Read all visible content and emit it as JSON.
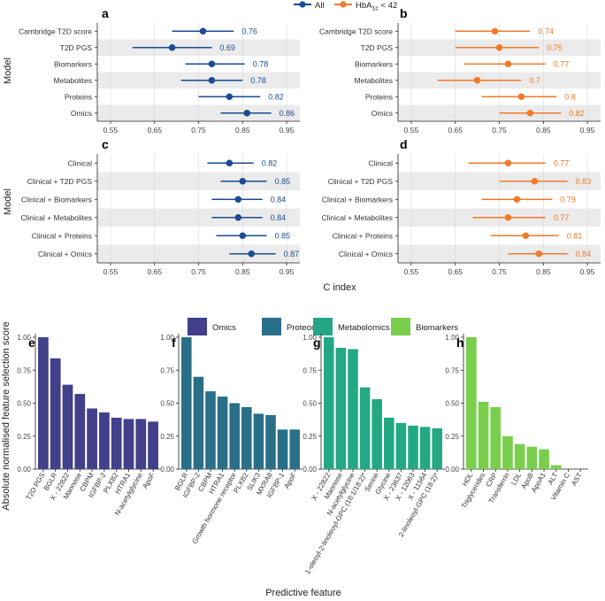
{
  "colors": {
    "all": "#1b4b91",
    "hba1c": "#f07a2a",
    "panel_band": "#ebebeb",
    "grid": "#d9d9d9",
    "omics": "#423f8b",
    "proteomics": "#2a6f88",
    "metabolomics": "#24a884",
    "biomarkers": "#79cf4c"
  },
  "legend_top": {
    "all_label": "All",
    "hba1c_label": "HbA1c < 42",
    "hba1c_main": "HbA",
    "hba1c_sub": "1c",
    "hba1c_rest": " < 42"
  },
  "top_axis": {
    "ylabel": "Model",
    "xlabel": "C index"
  },
  "legend_bottom": {
    "items": [
      {
        "label": "Omics"
      },
      {
        "label": "Proteomics"
      },
      {
        "label": "Metabolomics"
      },
      {
        "label": "Biomarkers"
      }
    ]
  },
  "bottom_axis": {
    "ylabel": "Absolute normalised feature selection score",
    "xlabel": "Predictive feature"
  },
  "chart_data": [
    {
      "panel": "a",
      "type": "forest",
      "series": "All",
      "xlim": [
        0.52,
        0.98
      ],
      "ticks": [
        "0.55",
        "0.65",
        "0.75",
        "0.85",
        "0.95"
      ],
      "tick_values": [
        0.55,
        0.65,
        0.75,
        0.85,
        0.95
      ],
      "rows": [
        {
          "label": "Cambridge T2D score",
          "value": 0.76,
          "lo": 0.69,
          "hi": 0.83,
          "text": "0.76"
        },
        {
          "label": "T2D PGS",
          "value": 0.69,
          "lo": 0.6,
          "hi": 0.78,
          "text": "0.69"
        },
        {
          "label": "Biomarkers",
          "value": 0.78,
          "lo": 0.72,
          "hi": 0.855,
          "text": "0.78"
        },
        {
          "label": "Metabolites",
          "value": 0.78,
          "lo": 0.71,
          "hi": 0.85,
          "text": "0.78"
        },
        {
          "label": "Proteins",
          "value": 0.82,
          "lo": 0.75,
          "hi": 0.89,
          "text": "0.82"
        },
        {
          "label": "Omics",
          "value": 0.86,
          "lo": 0.8,
          "hi": 0.915,
          "text": "0.86"
        }
      ]
    },
    {
      "panel": "b",
      "type": "forest",
      "series": "HbA1c < 42",
      "xlim": [
        0.52,
        0.98
      ],
      "ticks": [
        "0.55",
        "0.65",
        "0.75",
        "0.85",
        "0.95"
      ],
      "tick_values": [
        0.55,
        0.65,
        0.75,
        0.85,
        0.95
      ],
      "rows": [
        {
          "label": "Cambridge T2D score",
          "value": 0.74,
          "lo": 0.65,
          "hi": 0.82,
          "text": "0.74"
        },
        {
          "label": "T2D PGS",
          "value": 0.75,
          "lo": 0.65,
          "hi": 0.84,
          "text": "0.75"
        },
        {
          "label": "Biomarkers",
          "value": 0.77,
          "lo": 0.67,
          "hi": 0.855,
          "text": "0.77"
        },
        {
          "label": "Metabolites",
          "value": 0.7,
          "lo": 0.61,
          "hi": 0.8,
          "text": "0.7"
        },
        {
          "label": "Proteins",
          "value": 0.8,
          "lo": 0.71,
          "hi": 0.88,
          "text": "0.8"
        },
        {
          "label": "Omics",
          "value": 0.82,
          "lo": 0.75,
          "hi": 0.89,
          "text": "0.82"
        }
      ]
    },
    {
      "panel": "c",
      "type": "forest",
      "series": "All",
      "xlim": [
        0.52,
        0.98
      ],
      "ticks": [
        "0.55",
        "0.65",
        "0.75",
        "0.85",
        "0.95"
      ],
      "tick_values": [
        0.55,
        0.65,
        0.75,
        0.85,
        0.95
      ],
      "rows": [
        {
          "label": "Clinical",
          "value": 0.82,
          "lo": 0.77,
          "hi": 0.875,
          "text": "0.82"
        },
        {
          "label": "Clinical + T2D PGS",
          "value": 0.85,
          "lo": 0.8,
          "hi": 0.905,
          "text": "0.85"
        },
        {
          "label": "Clinical + Biomarkers",
          "value": 0.84,
          "lo": 0.78,
          "hi": 0.895,
          "text": "0.84"
        },
        {
          "label": "Clinical + Metabolites",
          "value": 0.84,
          "lo": 0.78,
          "hi": 0.895,
          "text": "0.84"
        },
        {
          "label": "Clinical + Proteins",
          "value": 0.85,
          "lo": 0.79,
          "hi": 0.905,
          "text": "0.85"
        },
        {
          "label": "Clinical + Omics",
          "value": 0.87,
          "lo": 0.82,
          "hi": 0.925,
          "text": "0.87"
        }
      ]
    },
    {
      "panel": "d",
      "type": "forest",
      "series": "HbA1c < 42",
      "xlim": [
        0.52,
        0.98
      ],
      "ticks": [
        "0.55",
        "0.65",
        "0.75",
        "0.85",
        "0.95"
      ],
      "tick_values": [
        0.55,
        0.65,
        0.75,
        0.85,
        0.95
      ],
      "rows": [
        {
          "label": "Clinical",
          "value": 0.77,
          "lo": 0.68,
          "hi": 0.855,
          "text": "0.77"
        },
        {
          "label": "Clinical + T2D PGS",
          "value": 0.83,
          "lo": 0.75,
          "hi": 0.905,
          "text": "0.83"
        },
        {
          "label": "Clinical + Biomarkers",
          "value": 0.79,
          "lo": 0.71,
          "hi": 0.87,
          "text": "0.79"
        },
        {
          "label": "Clinical + Metabolites",
          "value": 0.77,
          "lo": 0.69,
          "hi": 0.855,
          "text": "0.77"
        },
        {
          "label": "Clinical + Proteins",
          "value": 0.81,
          "lo": 0.73,
          "hi": 0.885,
          "text": "0.81"
        },
        {
          "label": "Clinical + Omics",
          "value": 0.84,
          "lo": 0.77,
          "hi": 0.905,
          "text": "0.84"
        }
      ]
    },
    {
      "panel": "e",
      "type": "bar",
      "group": "Omics",
      "ylim": [
        0,
        1
      ],
      "ticks": [
        "0.00",
        "0.25",
        "0.50",
        "0.75",
        "1.00"
      ],
      "tick_values": [
        0,
        0.25,
        0.5,
        0.75,
        1
      ],
      "categories": [
        "T2D PGS",
        "BGLR",
        "X - 22822",
        "Mannose",
        "CBPM",
        "IGFBP-2",
        "PLXB2",
        "HTRA1",
        "N-acetylglycine",
        "ApoF"
      ],
      "values": [
        1.0,
        0.84,
        0.64,
        0.57,
        0.46,
        0.43,
        0.39,
        0.38,
        0.38,
        0.36
      ]
    },
    {
      "panel": "f",
      "type": "bar",
      "group": "Proteomics",
      "ylim": [
        0,
        1
      ],
      "ticks": [
        "0.00",
        "0.25",
        "0.50",
        "0.75",
        "1.00"
      ],
      "tick_values": [
        0,
        0.25,
        0.5,
        0.75,
        1
      ],
      "categories": [
        "BGLR",
        "IGFBP-2",
        "CBPM",
        "HTRA1",
        "Growth hormone receptor",
        "PLXB2",
        "SLIK3",
        "MXRA8",
        "IGFBP-1",
        "ApoF"
      ],
      "values": [
        1.0,
        0.7,
        0.59,
        0.55,
        0.5,
        0.47,
        0.42,
        0.41,
        0.3,
        0.3
      ]
    },
    {
      "panel": "g",
      "type": "bar",
      "group": "Metabolomics",
      "ylim": [
        0,
        1
      ],
      "ticks": [
        "0.00",
        "0.25",
        "0.50",
        "0.75",
        "1.00"
      ],
      "tick_values": [
        0,
        0.25,
        0.5,
        0.75,
        1
      ],
      "categories": [
        "X - 22822",
        "Mannose",
        "N-acetylglycine",
        "1-oleoyl-2-linoleoyl-GPC (18:1/18:2)*",
        "Serine",
        "Glycine",
        "X - 23637",
        "X - 12063",
        "X - 11564",
        "2-linoleoyl-GPC (18:2)*"
      ],
      "values": [
        1.0,
        0.92,
        0.91,
        0.62,
        0.53,
        0.39,
        0.35,
        0.33,
        0.32,
        0.31
      ]
    },
    {
      "panel": "h",
      "type": "bar",
      "group": "Biomarkers",
      "ylim": [
        0,
        1
      ],
      "ticks": [
        "0.00",
        "0.25",
        "0.50",
        "0.75",
        "1.00"
      ],
      "tick_values": [
        0,
        0.25,
        0.5,
        0.75,
        1
      ],
      "categories": [
        "HDL",
        "Triglycerides",
        "CRP",
        "Transferrin",
        "LDL",
        "ApoB",
        "ApoA1",
        "ALT",
        "Vitamin C",
        "AST"
      ],
      "values": [
        1.0,
        0.51,
        0.47,
        0.25,
        0.19,
        0.17,
        0.15,
        0.03,
        0.0,
        0.0
      ]
    }
  ]
}
